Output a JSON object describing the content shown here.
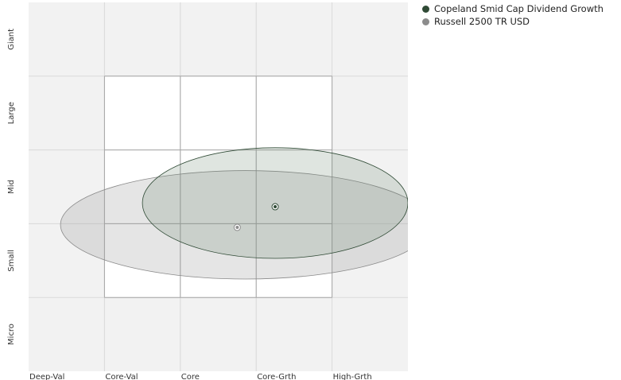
{
  "chart_data": {
    "type": "scatter",
    "x_categories": [
      "Deep-Val",
      "Core-Val",
      "Core",
      "Core-Grth",
      "High-Grth"
    ],
    "y_categories": [
      "Micro",
      "Small",
      "Mid",
      "Large",
      "Giant"
    ],
    "series": [
      {
        "name": "Copeland Smid Cap Dividend Growth",
        "color": "#2f4a35",
        "centroid": {
          "x": 3.25,
          "y": 2.23
        },
        "ellipse_extent": {
          "x": [
            1.5,
            5.0
          ],
          "y": [
            1.53,
            3.03
          ]
        }
      },
      {
        "name": "Russell 2500 TR USD",
        "color": "#8c8c8c",
        "centroid": {
          "x": 2.75,
          "y": 1.95
        },
        "ellipse_extent": {
          "x": [
            0.42,
            5.3
          ],
          "y": [
            1.25,
            2.72
          ]
        }
      }
    ],
    "grid": true,
    "legend_position": "top-right"
  }
}
